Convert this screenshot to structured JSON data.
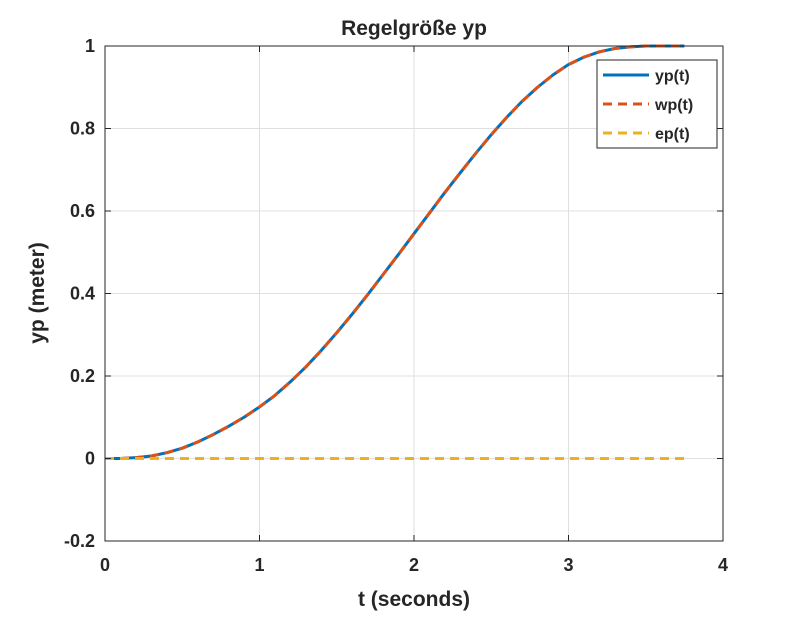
{
  "chart_data": {
    "type": "line",
    "title": "Regelgröße yp",
    "xlabel": "t (seconds)",
    "ylabel": "yp (meter)",
    "xlim": [
      0,
      4
    ],
    "ylim": [
      -0.2,
      1
    ],
    "xticks": [
      0,
      1,
      2,
      3,
      4
    ],
    "yticks": [
      -0.2,
      0,
      0.2,
      0.4,
      0.6,
      0.8,
      1
    ],
    "xtick_labels": [
      "0",
      "1",
      "2",
      "3",
      "4"
    ],
    "ytick_labels": [
      "-0.2",
      "0",
      "0.2",
      "0.4",
      "0.6",
      "0.8",
      "1"
    ],
    "grid": true,
    "legend_position": "top-right",
    "series": [
      {
        "name": "yp(t)",
        "color": "#0072BD",
        "style": "solid",
        "x": [
          0,
          0.1,
          0.2,
          0.3,
          0.4,
          0.5,
          0.6,
          0.7,
          0.8,
          0.9,
          1.0,
          1.1,
          1.2,
          1.3,
          1.4,
          1.5,
          1.6,
          1.7,
          1.8,
          1.9,
          2.0,
          2.1,
          2.2,
          2.3,
          2.4,
          2.5,
          2.6,
          2.7,
          2.8,
          2.9,
          3.0,
          3.1,
          3.2,
          3.3,
          3.4,
          3.5,
          3.6,
          3.75
        ],
        "y": [
          0,
          0,
          0.002,
          0.006,
          0.014,
          0.025,
          0.04,
          0.058,
          0.078,
          0.1,
          0.125,
          0.153,
          0.186,
          0.222,
          0.262,
          0.305,
          0.35,
          0.397,
          0.446,
          0.495,
          0.545,
          0.595,
          0.645,
          0.693,
          0.74,
          0.785,
          0.827,
          0.866,
          0.9,
          0.93,
          0.955,
          0.973,
          0.986,
          0.994,
          0.998,
          1.0,
          1.0,
          1.0
        ]
      },
      {
        "name": "wp(t)",
        "color": "#D95319",
        "style": "dashed",
        "x": [
          0,
          0.1,
          0.2,
          0.3,
          0.4,
          0.5,
          0.6,
          0.7,
          0.8,
          0.9,
          1.0,
          1.1,
          1.2,
          1.3,
          1.4,
          1.5,
          1.6,
          1.7,
          1.8,
          1.9,
          2.0,
          2.1,
          2.2,
          2.3,
          2.4,
          2.5,
          2.6,
          2.7,
          2.8,
          2.9,
          3.0,
          3.1,
          3.2,
          3.3,
          3.4,
          3.5,
          3.6,
          3.75
        ],
        "y": [
          0,
          0,
          0.002,
          0.006,
          0.014,
          0.025,
          0.04,
          0.058,
          0.078,
          0.1,
          0.125,
          0.153,
          0.186,
          0.222,
          0.262,
          0.305,
          0.35,
          0.397,
          0.446,
          0.495,
          0.545,
          0.595,
          0.645,
          0.693,
          0.74,
          0.785,
          0.827,
          0.866,
          0.9,
          0.93,
          0.955,
          0.973,
          0.986,
          0.994,
          0.998,
          1.0,
          1.0,
          1.0
        ]
      },
      {
        "name": "ep(t)",
        "color": "#EDB120",
        "style": "dashed",
        "x": [
          0,
          3.75
        ],
        "y": [
          0,
          0
        ]
      }
    ]
  }
}
